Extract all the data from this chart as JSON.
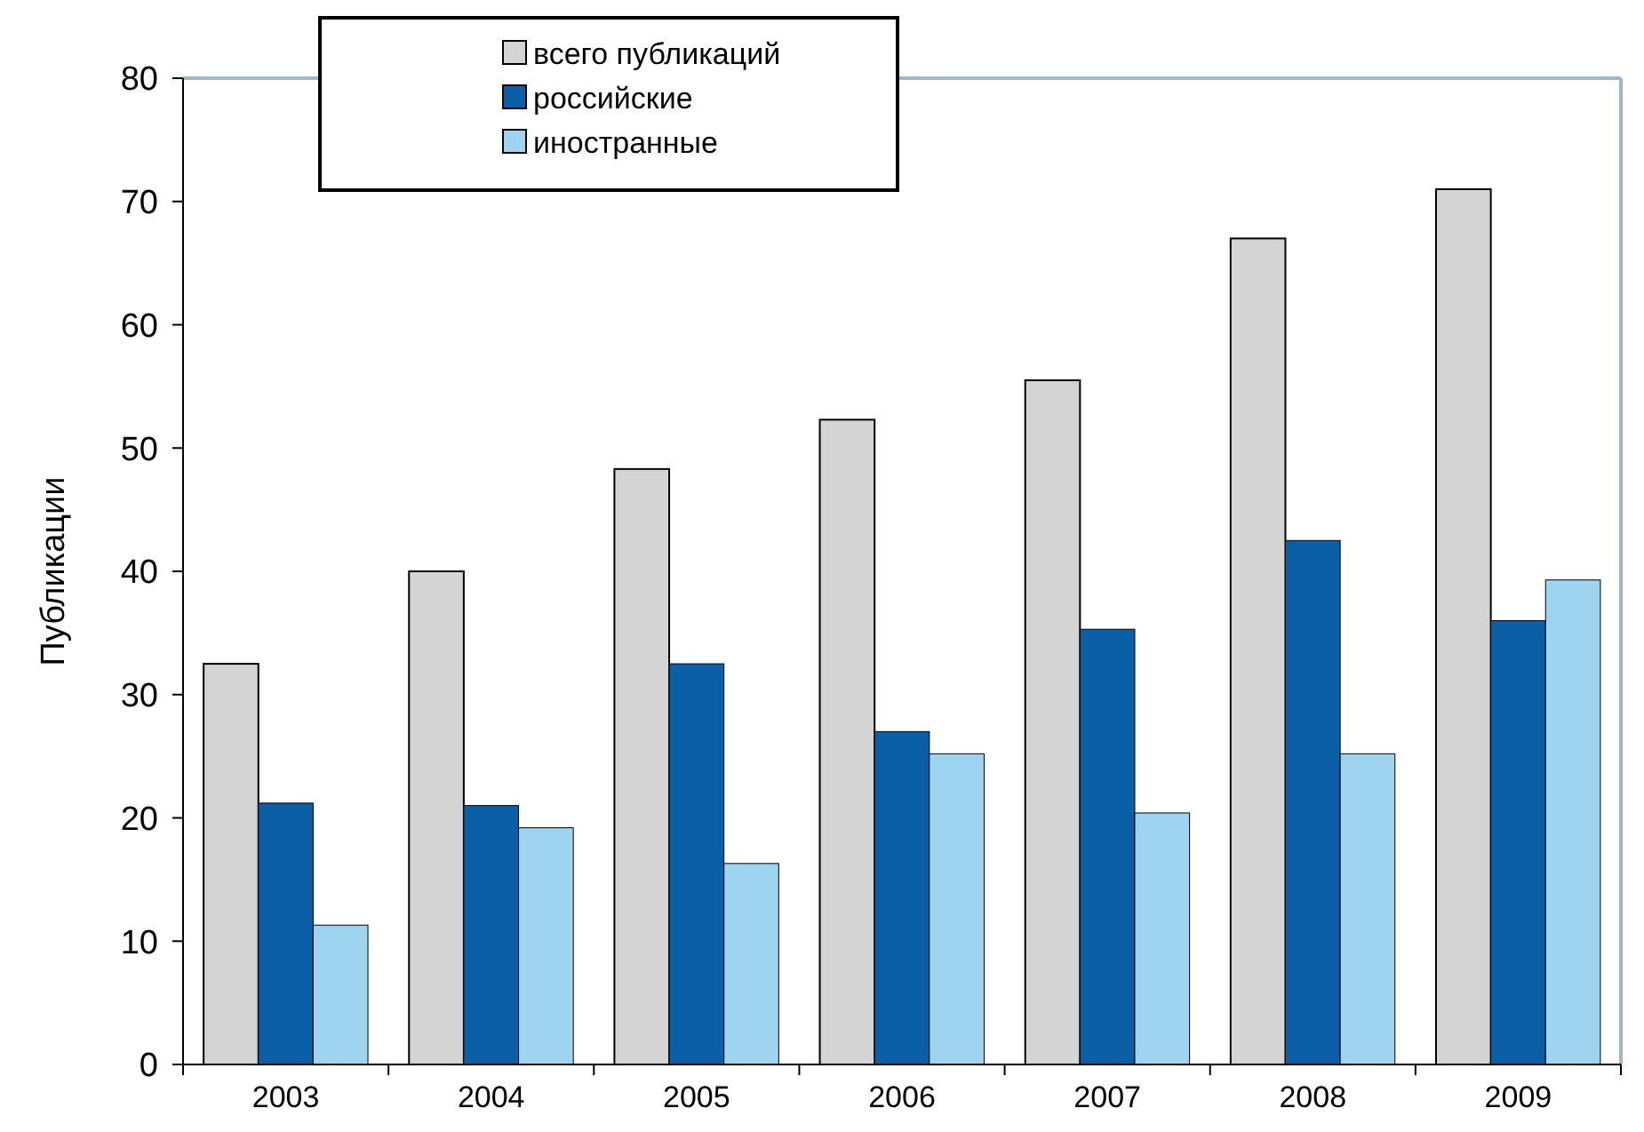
{
  "chart_data": {
    "type": "bar",
    "ylabel": "Публикации",
    "categories": [
      "2003",
      "2004",
      "2005",
      "2006",
      "2007",
      "2008",
      "2009"
    ],
    "series": [
      {
        "name": "всего публикаций",
        "color": "#d4d4d4",
        "values": [
          32.5,
          40,
          48.3,
          52.3,
          55.5,
          67,
          71
        ]
      },
      {
        "name": "российские",
        "color": "#0a5fa6",
        "values": [
          21.2,
          21,
          32.5,
          27,
          35.3,
          42.5,
          36
        ]
      },
      {
        "name": "иностранные",
        "color": "#9fd4f0",
        "values": [
          11.3,
          19.2,
          16.3,
          25.2,
          20.4,
          25.2,
          39.3
        ]
      }
    ],
    "ylim": [
      0,
      80
    ],
    "yticks": [
      0,
      10,
      20,
      30,
      40,
      50,
      60,
      70,
      80
    ],
    "grid": false,
    "legend": "top"
  }
}
